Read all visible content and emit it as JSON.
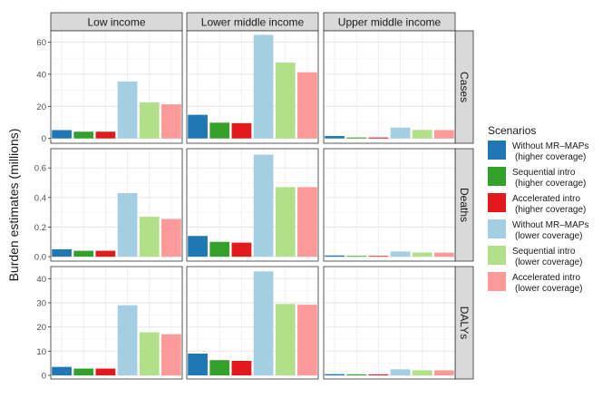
{
  "chart_data": {
    "type": "bar",
    "ylabel": "Burden estimates (millions)",
    "columns": [
      "Low income",
      "Lower middle income",
      "Upper middle income"
    ],
    "legend": {
      "title": "Scenarios",
      "placement": "right",
      "entries": [
        {
          "line1": "Without MR–MAPs",
          "line2": "(higher coverage)",
          "color": "#1F78B4"
        },
        {
          "line1": "Sequential intro",
          "line2": "(higher coverage)",
          "color": "#33A02C"
        },
        {
          "line1": "Accelerated intro",
          "line2": "(higher coverage)",
          "color": "#E31A1C"
        },
        {
          "line1": "Without MR–MAPs",
          "line2": "(lower coverage)",
          "color": "#A6CEE3"
        },
        {
          "line1": "Sequential intro",
          "line2": "(lower coverage)",
          "color": "#B2DF8A"
        },
        {
          "line1": "Accelerated intro",
          "line2": "(lower coverage)",
          "color": "#FB9A99"
        }
      ]
    },
    "grid": true,
    "panels_rows": [
      {
        "label": "Cases",
        "ylim": [
          -3,
          67
        ],
        "ticks": [
          0,
          20,
          40,
          60
        ],
        "tick_labels": [
          "0",
          "20",
          "40",
          "60"
        ],
        "values": [
          [
            5.2,
            4.2,
            4.2,
            35.5,
            22.5,
            21.2
          ],
          [
            14.7,
            9.8,
            9.5,
            64.5,
            47.2,
            41.2
          ],
          [
            1.5,
            0.6,
            0.6,
            6.7,
            5.3,
            5.2
          ]
        ]
      },
      {
        "label": "Deaths",
        "ylim": [
          -0.03,
          0.73
        ],
        "ticks": [
          0,
          0.2,
          0.4,
          0.6
        ],
        "tick_labels": [
          "0.0",
          "0.2",
          "0.4",
          "0.6"
        ],
        "values": [
          [
            0.05,
            0.04,
            0.04,
            0.43,
            0.27,
            0.255
          ],
          [
            0.14,
            0.1,
            0.095,
            0.69,
            0.47,
            0.47
          ],
          [
            0.008,
            0.005,
            0.005,
            0.035,
            0.028,
            0.027
          ]
        ]
      },
      {
        "label": "DALYs",
        "ylim": [
          -1.5,
          45
        ],
        "ticks": [
          0,
          10,
          20,
          30,
          40
        ],
        "tick_labels": [
          "0",
          "10",
          "20",
          "30",
          "40"
        ],
        "values": [
          [
            3.5,
            2.8,
            2.8,
            29.0,
            17.8,
            17.0
          ],
          [
            9.0,
            6.3,
            6.0,
            43.0,
            29.5,
            29.2
          ],
          [
            0.5,
            0.4,
            0.4,
            2.5,
            2.1,
            2.1
          ]
        ]
      }
    ]
  }
}
